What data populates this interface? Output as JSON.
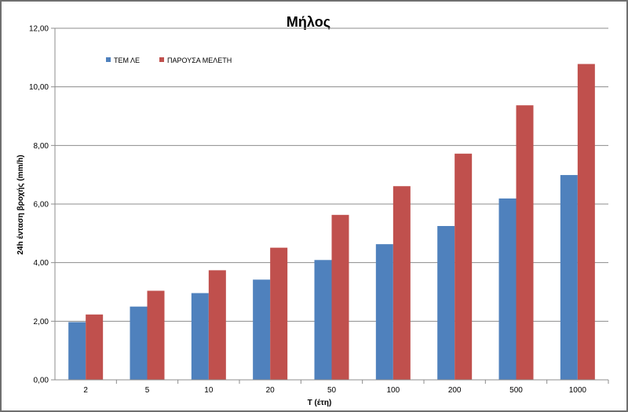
{
  "chart_data": {
    "type": "bar",
    "title": "Μήλος",
    "xlabel": "T (έτη)",
    "ylabel": "24h ένταση βροχής (mm/h)",
    "categories": [
      "2",
      "5",
      "10",
      "20",
      "50",
      "100",
      "200",
      "500",
      "1000"
    ],
    "series": [
      {
        "name": "ΤΕΜ ΛΕ",
        "color": "#4f81bd",
        "values": [
          1.97,
          2.5,
          2.96,
          3.42,
          4.09,
          4.63,
          5.25,
          6.19,
          6.99
        ]
      },
      {
        "name": "ΠΑΡΟΥΣΑ ΜΕΛΕΤΗ",
        "color": "#c0504d",
        "values": [
          2.23,
          3.04,
          3.74,
          4.51,
          5.63,
          6.61,
          7.72,
          9.37,
          10.78
        ]
      }
    ],
    "ylim": [
      0,
      12
    ],
    "yticks": [
      "0,00",
      "2,00",
      "4,00",
      "6,00",
      "8,00",
      "10,00",
      "12,00"
    ],
    "grid": true,
    "legend_position": "top-left"
  }
}
